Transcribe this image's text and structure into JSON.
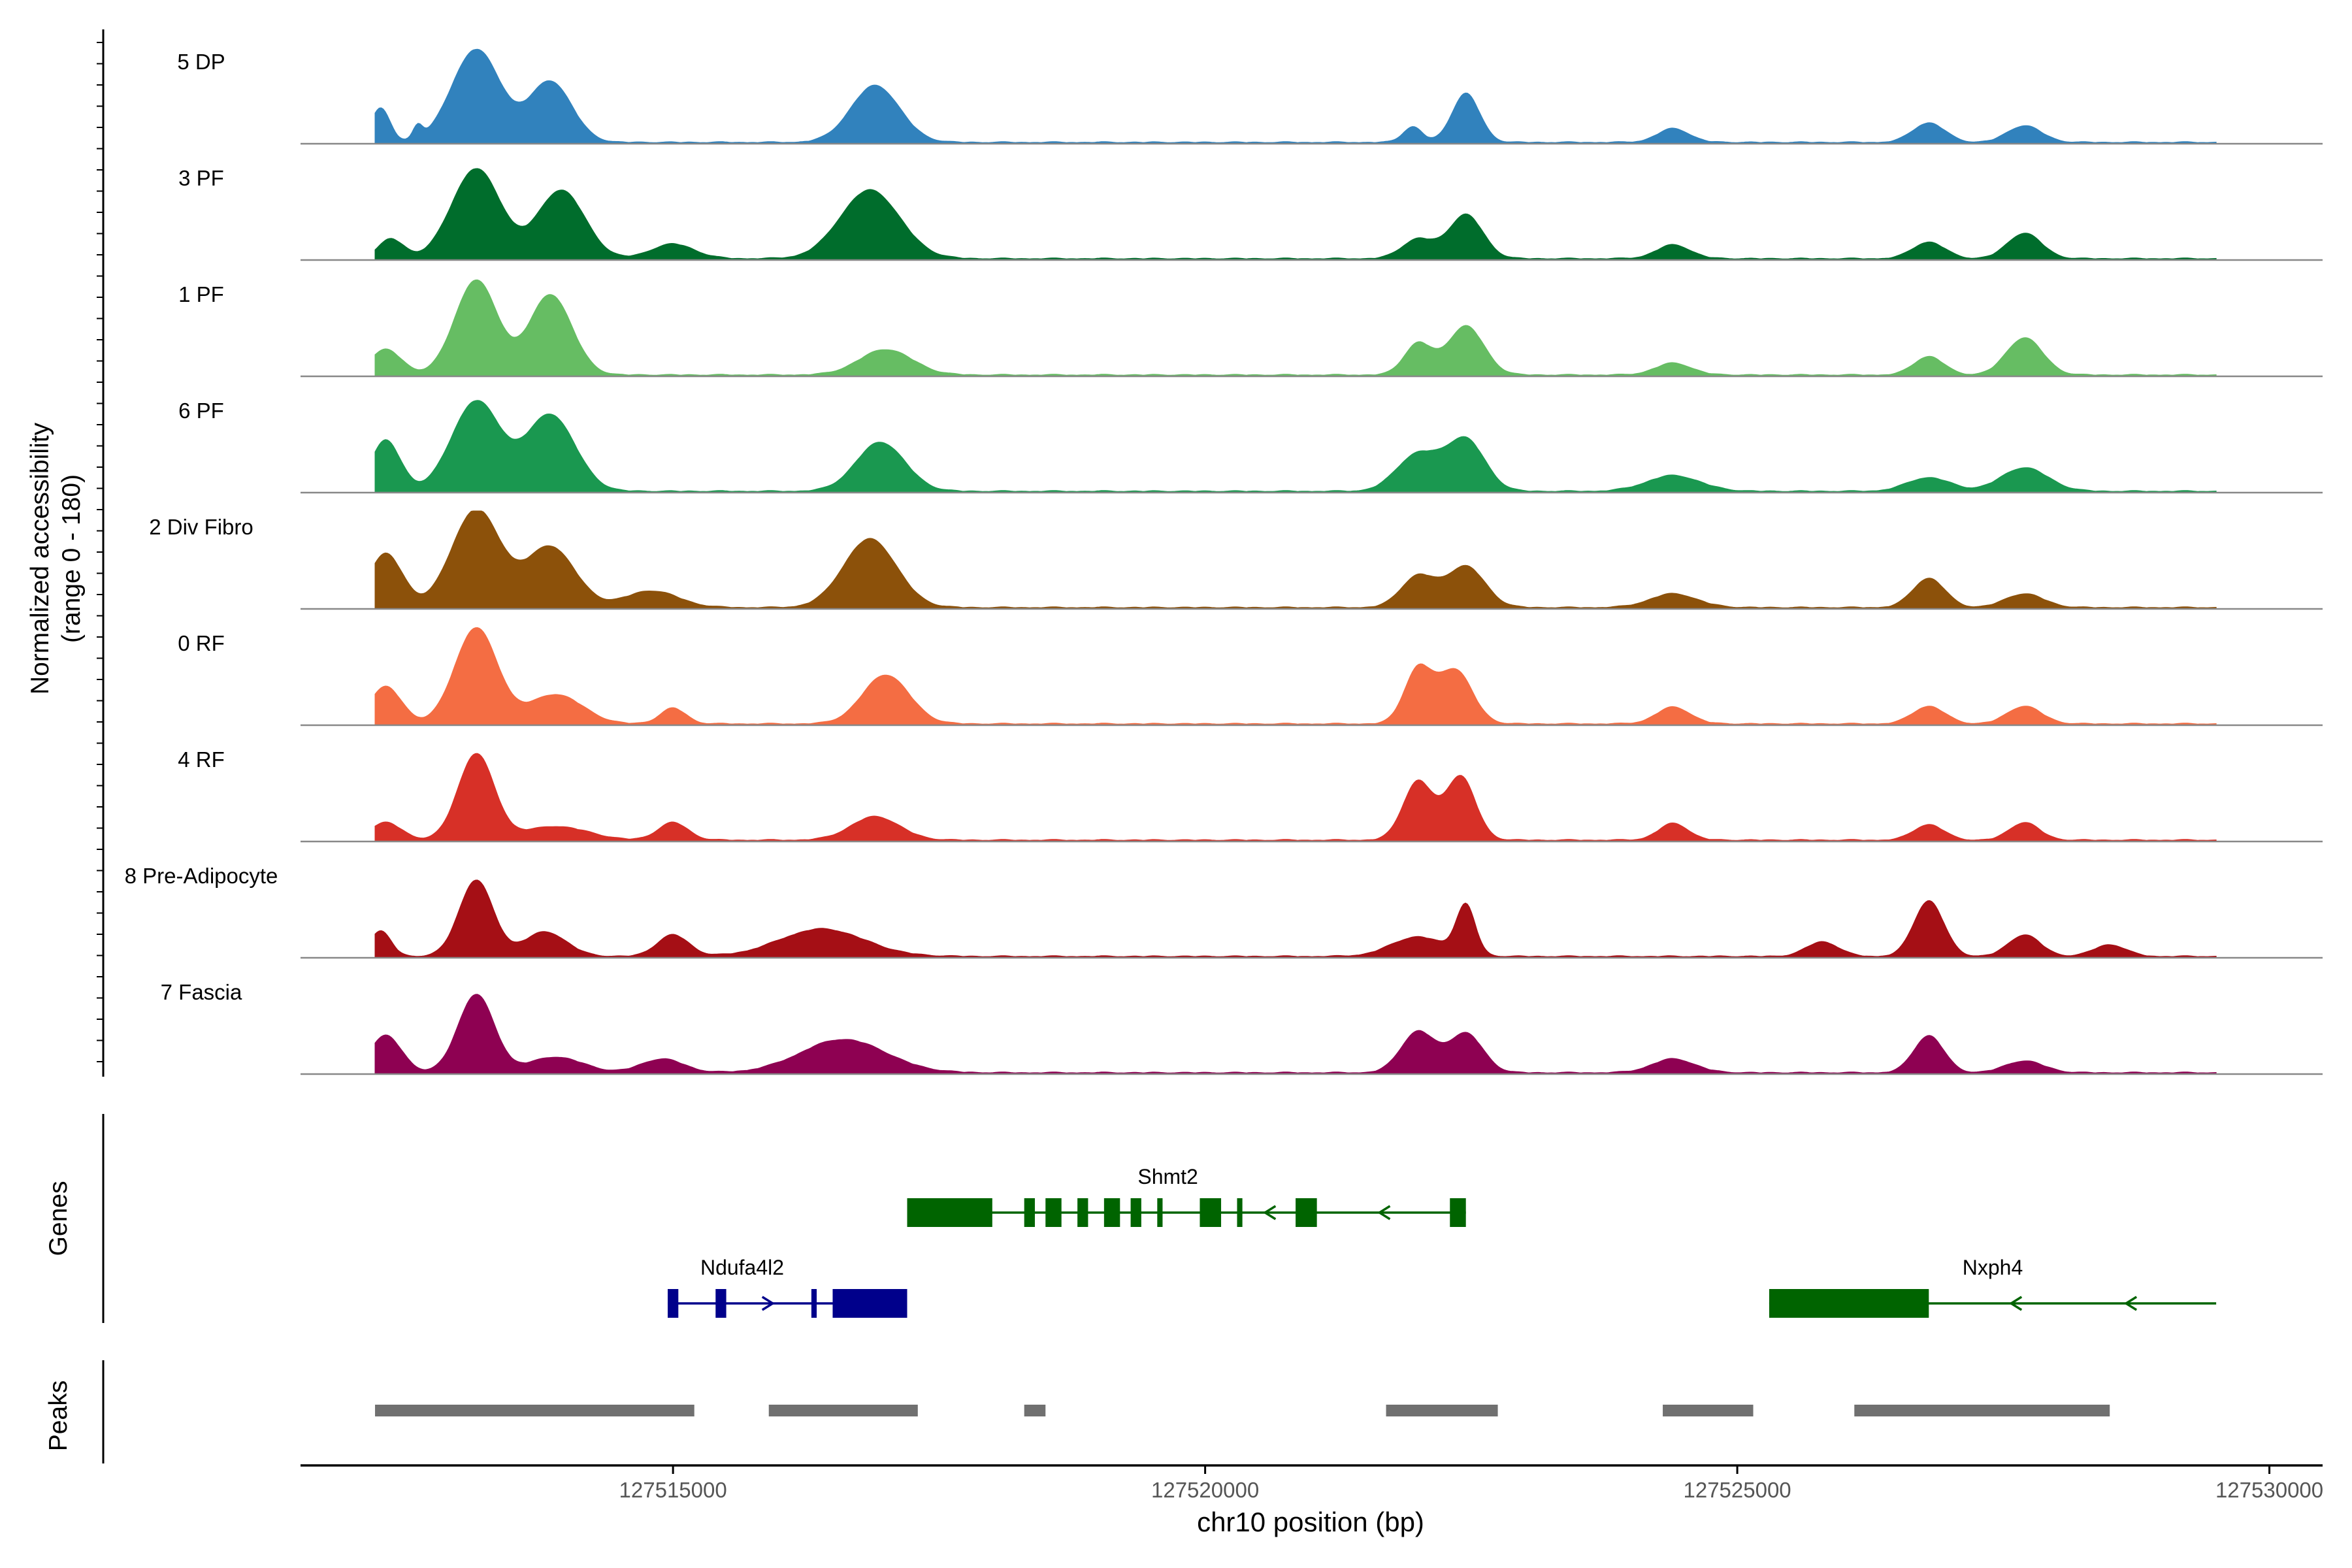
{
  "chart_data": {
    "type": "area",
    "title": "",
    "ylabel_line1": "Normalized accessibility",
    "ylabel_line2": "(range 0 - 180)",
    "xlabel": "chr10 position (bp)",
    "xlim": [
      127511500,
      127530500
    ],
    "region": [
      127512200,
      127529500
    ],
    "ylim": [
      0,
      180
    ],
    "x_ticks": [
      127515000,
      127520000,
      127525000,
      127530000
    ],
    "x_tick_labels": [
      "127515000",
      "127520000",
      "127525000",
      "127530000"
    ],
    "tracks": [
      {
        "name": "5 DP",
        "color": "#3182BD",
        "peaks": [
          [
            127512250,
            0.35,
            90
          ],
          [
            127512600,
            0.14,
            45
          ],
          [
            127513150,
            0.95,
            230
          ],
          [
            127513850,
            0.62,
            200
          ],
          [
            127516900,
            0.58,
            230
          ],
          [
            127521950,
            0.16,
            90
          ],
          [
            127522450,
            0.5,
            130
          ],
          [
            127524400,
            0.14,
            150
          ],
          [
            127526800,
            0.2,
            150
          ],
          [
            127527700,
            0.17,
            160
          ]
        ]
      },
      {
        "name": "3 PF",
        "color": "#006D2C",
        "peaks": [
          [
            127512350,
            0.2,
            120
          ],
          [
            127513150,
            0.92,
            230
          ],
          [
            127513950,
            0.7,
            220
          ],
          [
            127515000,
            0.15,
            200
          ],
          [
            127516850,
            0.7,
            280
          ],
          [
            127522000,
            0.2,
            150
          ],
          [
            127522450,
            0.45,
            160
          ],
          [
            127524400,
            0.14,
            160
          ],
          [
            127526800,
            0.17,
            150
          ],
          [
            127527700,
            0.26,
            160
          ]
        ]
      },
      {
        "name": "1 PF",
        "color": "#66BD63",
        "peaks": [
          [
            127512300,
            0.26,
            150
          ],
          [
            127513150,
            0.97,
            200
          ],
          [
            127513850,
            0.82,
            200
          ],
          [
            127517000,
            0.26,
            250
          ],
          [
            127522000,
            0.32,
            130
          ],
          [
            127522450,
            0.5,
            170
          ],
          [
            127524400,
            0.12,
            170
          ],
          [
            127526800,
            0.19,
            140
          ],
          [
            127527700,
            0.38,
            170
          ]
        ]
      },
      {
        "name": "6 PF",
        "color": "#1A9850",
        "peaks": [
          [
            127512300,
            0.52,
            140
          ],
          [
            127513150,
            0.92,
            230
          ],
          [
            127513850,
            0.78,
            230
          ],
          [
            127516950,
            0.5,
            230
          ],
          [
            127522000,
            0.38,
            200
          ],
          [
            127522450,
            0.52,
            180
          ],
          [
            127524400,
            0.16,
            250
          ],
          [
            127526800,
            0.14,
            200
          ],
          [
            127527700,
            0.24,
            220
          ]
        ]
      },
      {
        "name": "2 Div Fibro",
        "color": "#8C510A",
        "peaks": [
          [
            127512300,
            0.55,
            160
          ],
          [
            127513150,
            1.0,
            230
          ],
          [
            127513850,
            0.62,
            230
          ],
          [
            127514800,
            0.17,
            250
          ],
          [
            127516850,
            0.7,
            250
          ],
          [
            127522000,
            0.32,
            160
          ],
          [
            127522450,
            0.42,
            180
          ],
          [
            127524400,
            0.14,
            220
          ],
          [
            127526800,
            0.3,
            150
          ],
          [
            127527700,
            0.14,
            180
          ]
        ]
      },
      {
        "name": "0 RF",
        "color": "#F46D43",
        "peaks": [
          [
            127512300,
            0.38,
            150
          ],
          [
            127513150,
            0.98,
            200
          ],
          [
            127513900,
            0.3,
            250
          ],
          [
            127515000,
            0.16,
            120
          ],
          [
            127517000,
            0.5,
            220
          ],
          [
            127522000,
            0.55,
            130
          ],
          [
            127522350,
            0.55,
            160
          ],
          [
            127524400,
            0.17,
            160
          ],
          [
            127526800,
            0.18,
            150
          ],
          [
            127527700,
            0.18,
            160
          ]
        ]
      },
      {
        "name": "4 RF",
        "color": "#D73027",
        "peaks": [
          [
            127512300,
            0.18,
            150
          ],
          [
            127513150,
            0.88,
            170
          ],
          [
            127513900,
            0.14,
            300
          ],
          [
            127515000,
            0.18,
            140
          ],
          [
            127516900,
            0.24,
            230
          ],
          [
            127522000,
            0.6,
            140
          ],
          [
            127522400,
            0.65,
            140
          ],
          [
            127524400,
            0.17,
            140
          ],
          [
            127526800,
            0.16,
            140
          ],
          [
            127527700,
            0.18,
            140
          ]
        ]
      },
      {
        "name": "8 Pre-Adipocyte",
        "color": "#A50F15",
        "peaks": [
          [
            127512250,
            0.26,
            100
          ],
          [
            127513150,
            0.78,
            160
          ],
          [
            127513800,
            0.25,
            200
          ],
          [
            127515000,
            0.22,
            150
          ],
          [
            127516400,
            0.28,
            400
          ],
          [
            127522000,
            0.2,
            250
          ],
          [
            127522450,
            0.5,
            90
          ],
          [
            127525800,
            0.15,
            150
          ],
          [
            127526800,
            0.57,
            140
          ],
          [
            127527700,
            0.22,
            150
          ],
          [
            127528500,
            0.12,
            150
          ]
        ]
      },
      {
        "name": "7 Fascia",
        "color": "#8E0152",
        "peaks": [
          [
            127512300,
            0.38,
            150
          ],
          [
            127513150,
            0.8,
            170
          ],
          [
            127513900,
            0.16,
            250
          ],
          [
            127514900,
            0.14,
            200
          ],
          [
            127516600,
            0.34,
            400
          ],
          [
            127522000,
            0.42,
            160
          ],
          [
            127522450,
            0.4,
            160
          ],
          [
            127524400,
            0.14,
            200
          ],
          [
            127526800,
            0.38,
            140
          ],
          [
            127527700,
            0.12,
            180
          ]
        ]
      }
    ],
    "genes_label": "Genes",
    "genes": [
      {
        "name": "Shmt2",
        "color": "#006400",
        "strand": "-",
        "start": 127517200,
        "end": 127522450,
        "row": 0,
        "exons": [
          [
            127517200,
            127518000
          ],
          [
            127518300,
            127518400
          ],
          [
            127518500,
            127518650
          ],
          [
            127518800,
            127518900
          ],
          [
            127519050,
            127519200
          ],
          [
            127519300,
            127519400
          ],
          [
            127519550,
            127519600
          ],
          [
            127519950,
            127520150
          ],
          [
            127520300,
            127520350
          ],
          [
            127520850,
            127521050
          ],
          [
            127522300,
            127522450
          ]
        ]
      },
      {
        "name": "Ndufa4l2",
        "color": "#00008B",
        "strand": "+",
        "start": 127514950,
        "end": 127517200,
        "row": 1,
        "exons": [
          [
            127514950,
            127515050
          ],
          [
            127515400,
            127515500
          ],
          [
            127516300,
            127516350
          ],
          [
            127516500,
            127517200
          ]
        ]
      },
      {
        "name": "Nxph4",
        "color": "#006400",
        "strand": "-",
        "start": 127525300,
        "end": 127529500,
        "row": 1,
        "exons": [
          [
            127525300,
            127526800
          ]
        ]
      }
    ],
    "peaks_label": "Peaks",
    "peak_regions": [
      [
        127512200,
        127515200
      ],
      [
        127515900,
        127517300
      ],
      [
        127518300,
        127518500
      ],
      [
        127521700,
        127522750
      ],
      [
        127524300,
        127525150
      ],
      [
        127526100,
        127528500
      ]
    ]
  }
}
